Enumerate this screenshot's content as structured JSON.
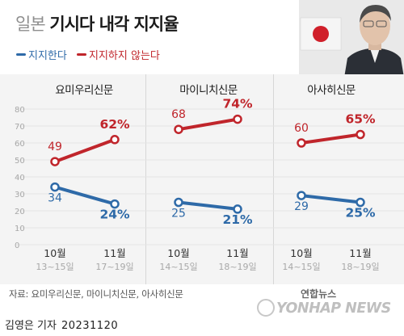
{
  "header": {
    "title_prefix": "일본",
    "title_main": "기시다 내각 지지율"
  },
  "legend": {
    "support": "지지한다",
    "oppose": "지지하지 않는다"
  },
  "colors": {
    "support": "#2e6aa8",
    "oppose": "#c0252b",
    "axis_text": "#a8a8a8",
    "grid": "#e3e3e3",
    "panel_bg": "#f4f4f4"
  },
  "icons": {
    "photo": "person-photo-with-japan-flag",
    "logo": "yonhap-news-logo"
  },
  "chart_data": [
    {
      "type": "line",
      "title": "요미우리신문",
      "x": [
        "10월",
        "11월"
      ],
      "x_dates": [
        "13~15일",
        "17~19일"
      ],
      "ylim": [
        0,
        80
      ],
      "y_ticks": [
        "0",
        "10",
        "20",
        "30",
        "40",
        "50",
        "60",
        "70",
        "80"
      ],
      "series": [
        {
          "name": "지지하지 않는다",
          "key": "oppose",
          "values": [
            49,
            62
          ],
          "labels": [
            "49",
            "62%"
          ]
        },
        {
          "name": "지지한다",
          "key": "support",
          "values": [
            34,
            24
          ],
          "labels": [
            "34",
            "24%"
          ]
        }
      ]
    },
    {
      "type": "line",
      "title": "마이니치신문",
      "x": [
        "10월",
        "11월"
      ],
      "x_dates": [
        "14~15일",
        "18~19일"
      ],
      "ylim": [
        0,
        80
      ],
      "series": [
        {
          "name": "지지하지 않는다",
          "key": "oppose",
          "values": [
            68,
            74
          ],
          "labels": [
            "68",
            "74%"
          ]
        },
        {
          "name": "지지한다",
          "key": "support",
          "values": [
            25,
            21
          ],
          "labels": [
            "25",
            "21%"
          ]
        }
      ]
    },
    {
      "type": "line",
      "title": "아사히신문",
      "x": [
        "10월",
        "11월"
      ],
      "x_dates": [
        "14~15일",
        "18~19일"
      ],
      "ylim": [
        0,
        80
      ],
      "series": [
        {
          "name": "지지하지 않는다",
          "key": "oppose",
          "values": [
            60,
            65
          ],
          "labels": [
            "60",
            "65%"
          ]
        },
        {
          "name": "지지한다",
          "key": "support",
          "values": [
            29,
            25
          ],
          "labels": [
            "29",
            "25%"
          ]
        }
      ]
    }
  ],
  "footer": {
    "source": "자료: 요미우리신문, 마이니치신문, 아사히신문",
    "reporter": "김영은 기자",
    "date": "20231120",
    "logo_korean": "연합뉴스",
    "logo_english": "YONHAP NEWS"
  }
}
